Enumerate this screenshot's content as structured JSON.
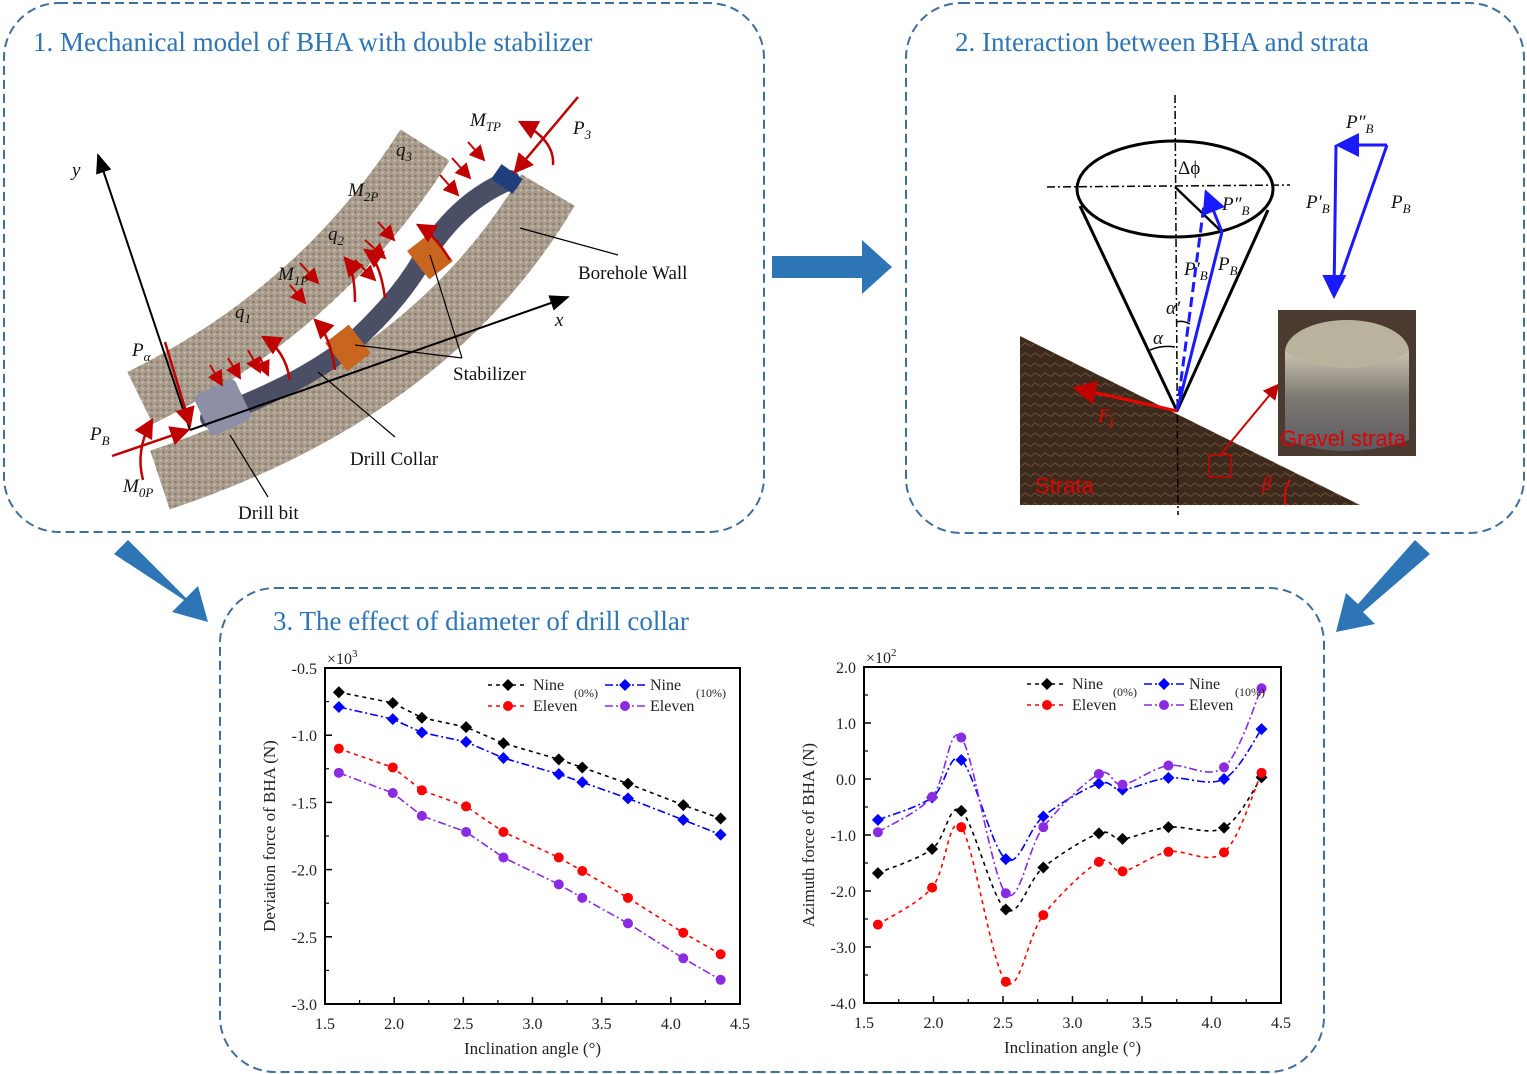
{
  "panels": {
    "p1_title": "1. Mechanical model of BHA with double stabilizer",
    "p2_title": "2. Interaction between BHA and strata",
    "p3_title": "3. The effect of diameter of drill collar"
  },
  "model": {
    "mtp": {
      "main": "M",
      "sub": "TP"
    },
    "p3": {
      "main": "P",
      "sub": "3"
    },
    "q3": {
      "main": "q",
      "sub": "3"
    },
    "m2p": {
      "main": "M",
      "sub": "2P"
    },
    "q2": {
      "main": "q",
      "sub": "2"
    },
    "m1p": {
      "main": "M",
      "sub": "1P"
    },
    "q1": {
      "main": "q",
      "sub": "1"
    },
    "y": "y",
    "x": "x",
    "palpha": {
      "main": "P",
      "sub": "α"
    },
    "pb": {
      "main": "P",
      "sub": "B"
    },
    "m0p": {
      "main": "M",
      "sub": "0P"
    },
    "borehole_wall": "Borehole Wall",
    "stabilizer": "Stabilizer",
    "drill_collar": "Drill Collar",
    "drill_bit": "Drill bit"
  },
  "interaction": {
    "delta_phi": "Δϕ",
    "pb2": {
      "main": "P″",
      "sub": "B"
    },
    "pb1": {
      "main": "P′",
      "sub": "B"
    },
    "pb": {
      "main": "P",
      "sub": "B"
    },
    "alpha_prime": "α′",
    "alpha": "α",
    "ff": {
      "main": "F",
      "sub": "f"
    },
    "beta": "β",
    "strata": "Strata",
    "gravel_strata": "Gravel strata"
  },
  "chart_data": [
    {
      "type": "line",
      "title": "",
      "xlabel": "Inclination angle (°)",
      "ylabel": "Deviation force of BHA (N)",
      "multiplier": {
        "base": "×10",
        "exp": "3"
      },
      "xlim": [
        1.5,
        4.5
      ],
      "ylim": [
        -3.0,
        -0.5
      ],
      "xticks": [
        "1.5",
        "2.0",
        "2.5",
        "3.0",
        "3.5",
        "4.0",
        "4.5"
      ],
      "yticks": [
        "-3.0",
        "-2.5",
        "-2.0",
        "-1.5",
        "-1.0",
        "-0.5"
      ],
      "smooth": false,
      "x": [
        1.6,
        1.99,
        2.2,
        2.52,
        2.79,
        3.19,
        3.36,
        3.69,
        4.09,
        4.36
      ],
      "legend_groups": [
        "(0%)",
        "(10%)"
      ],
      "legend": "top-right",
      "series": [
        {
          "name": "Nine",
          "group": "(0%)",
          "color": "#000000",
          "marker": "diamond",
          "dash": "4,4",
          "values": [
            -0.68,
            -0.76,
            -0.87,
            -0.94,
            -1.06,
            -1.18,
            -1.24,
            -1.36,
            -1.52,
            -1.62
          ]
        },
        {
          "name": "Eleven",
          "group": "(0%)",
          "color": "#ff0000",
          "marker": "circle",
          "dash": "4,4",
          "values": [
            -1.1,
            -1.24,
            -1.41,
            -1.53,
            -1.72,
            -1.91,
            -2.01,
            -2.21,
            -2.47,
            -2.63
          ]
        },
        {
          "name": "Nine",
          "group": "(10%)",
          "color": "#0000ff",
          "marker": "diamond",
          "dash": "8,3,2,3",
          "values": [
            -0.79,
            -0.88,
            -0.98,
            -1.05,
            -1.17,
            -1.29,
            -1.35,
            -1.47,
            -1.63,
            -1.74
          ]
        },
        {
          "name": "Eleven",
          "group": "(10%)",
          "color": "#8a2be2",
          "marker": "circle",
          "dash": "8,3,2,3",
          "values": [
            -1.28,
            -1.43,
            -1.6,
            -1.72,
            -1.91,
            -2.11,
            -2.21,
            -2.4,
            -2.66,
            -2.82
          ]
        }
      ]
    },
    {
      "type": "line",
      "title": "",
      "xlabel": "Inclination angle (°)",
      "ylabel": "Azimuth force of BHA (N)",
      "multiplier": {
        "base": "×10",
        "exp": "2"
      },
      "xlim": [
        1.5,
        4.5
      ],
      "ylim": [
        -4.0,
        2.0
      ],
      "xticks": [
        "1.5",
        "2.0",
        "2.5",
        "3.0",
        "3.5",
        "4.0",
        "4.5"
      ],
      "yticks": [
        "-4.0",
        "-3.0",
        "-2.0",
        "-1.0",
        "0.0",
        "1.0",
        "2.0"
      ],
      "smooth": true,
      "x": [
        1.6,
        1.99,
        2.2,
        2.52,
        2.79,
        3.19,
        3.36,
        3.69,
        4.09,
        4.36
      ],
      "legend_groups": [
        "(0%)",
        "(10%)"
      ],
      "legend": "top-right",
      "series": [
        {
          "name": "Nine",
          "group": "(0%)",
          "color": "#000000",
          "marker": "diamond",
          "dash": "4,4",
          "values": [
            -1.68,
            -1.25,
            -0.57,
            -2.33,
            -1.58,
            -0.97,
            -1.07,
            -0.86,
            -0.87,
            0.03
          ]
        },
        {
          "name": "Eleven",
          "group": "(0%)",
          "color": "#ff0000",
          "marker": "circle",
          "dash": "4,4",
          "values": [
            -2.6,
            -1.94,
            -0.86,
            -3.62,
            -2.43,
            -1.48,
            -1.65,
            -1.3,
            -1.31,
            0.11
          ]
        },
        {
          "name": "Nine",
          "group": "(10%)",
          "color": "#0000ff",
          "marker": "diamond",
          "dash": "8,3,2,3",
          "values": [
            -0.73,
            -0.33,
            0.34,
            -1.43,
            -0.67,
            -0.08,
            -0.19,
            0.02,
            0.0,
            0.89
          ]
        },
        {
          "name": "Eleven",
          "group": "(10%)",
          "color": "#8a2be2",
          "marker": "circle",
          "dash": "8,3,2,3",
          "values": [
            -0.95,
            -0.32,
            0.74,
            -2.04,
            -0.86,
            0.09,
            -0.1,
            0.24,
            0.21,
            1.62
          ]
        }
      ]
    }
  ],
  "colors": {
    "accent": "#2e75b6",
    "force": "#c00000",
    "vector": "#1a1aff"
  }
}
